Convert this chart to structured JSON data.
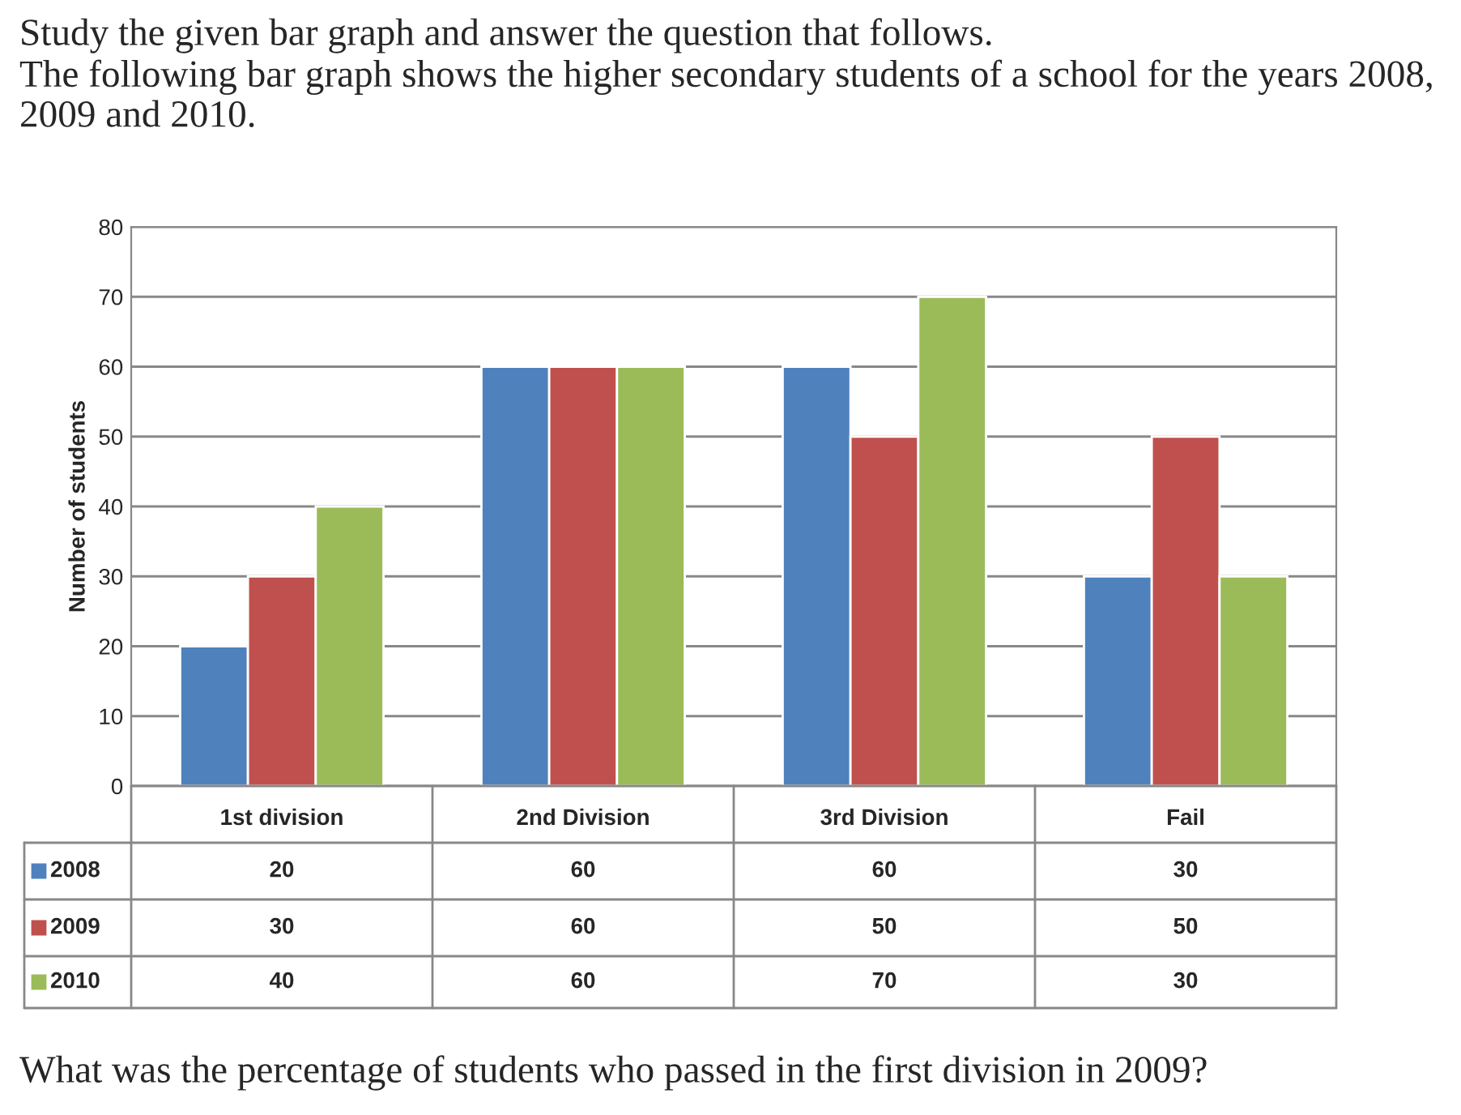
{
  "chart_data": {
    "type": "bar",
    "title": "Study the given bar graph and answer the question that follows.",
    "subtitle": "The following bar graph shows the higher secondary students of a school for the years 2008, 2009 and 2010.",
    "ylabel": "Number of students",
    "categories": [
      "1st division",
      "2nd Division",
      "3rd Division",
      "Fail"
    ],
    "series": [
      {
        "name": "2008",
        "color": "#4f81bd",
        "values": [
          20,
          60,
          60,
          30
        ]
      },
      {
        "name": "2009",
        "color": "#c0504d",
        "values": [
          30,
          60,
          50,
          50
        ]
      },
      {
        "name": "2010",
        "color": "#9bbb59",
        "values": [
          40,
          60,
          70,
          30
        ]
      }
    ],
    "ylim": [
      0,
      80
    ],
    "yticks": [
      0,
      10,
      20,
      30,
      40,
      50,
      60,
      70,
      80
    ],
    "grid": "y",
    "data_labels": true,
    "legend": "bottom",
    "annotations": [
      "What was the percentage of students who passed in the first division in 2009?"
    ]
  }
}
